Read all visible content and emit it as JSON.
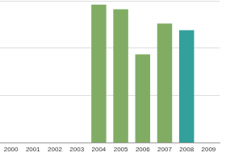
{
  "chart_data": {
    "type": "bar",
    "categories": [
      "2000",
      "2001",
      "2002",
      "2003",
      "2004",
      "2005",
      "2006",
      "2007",
      "2008",
      "2009"
    ],
    "values": [
      null,
      null,
      null,
      null,
      2.92,
      2.82,
      1.87,
      2.52,
      2.38,
      null
    ],
    "colors": [
      "#80ad63",
      "#80ad63",
      "#80ad63",
      "#80ad63",
      "#80ad63",
      "#80ad63",
      "#80ad63",
      "#80ad63",
      "#33a09c",
      "#80ad63"
    ],
    "ylim": [
      0,
      3
    ],
    "yticks": [
      0,
      1,
      2,
      3
    ],
    "grid": true,
    "tick_labels": "x"
  }
}
